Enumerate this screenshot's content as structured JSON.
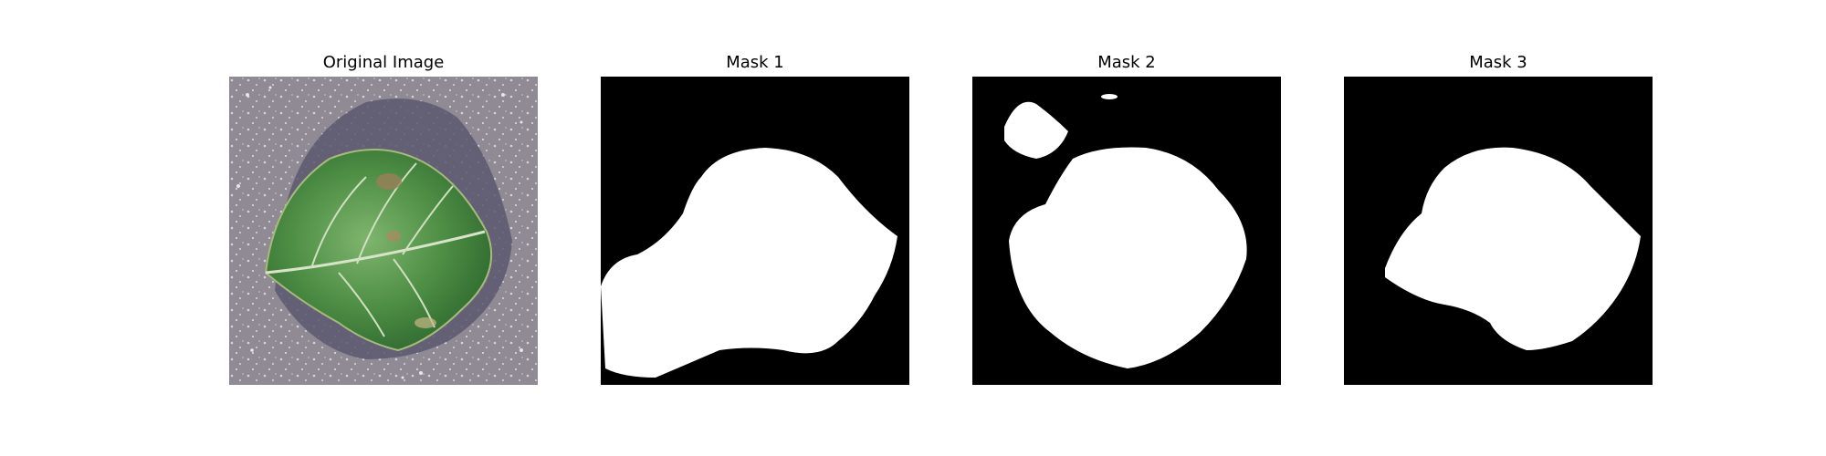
{
  "figure": {
    "panels": [
      {
        "title": "Original Image",
        "kind": "photo"
      },
      {
        "title": "Mask 1",
        "kind": "mask"
      },
      {
        "title": "Mask 2",
        "kind": "mask"
      },
      {
        "title": "Mask 3",
        "kind": "mask"
      }
    ],
    "colors": {
      "background": "#ffffff",
      "mask_background": "#000000",
      "mask_foreground": "#ffffff",
      "leaf_green": "#4f8f45",
      "surface_gray": "#8f8a93"
    }
  }
}
